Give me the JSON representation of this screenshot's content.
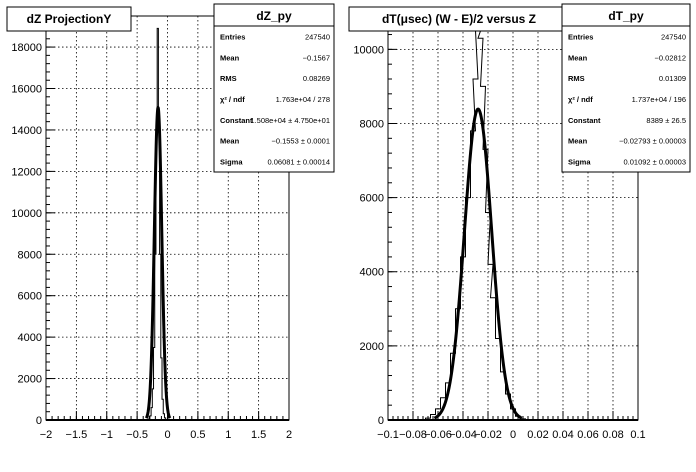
{
  "chart_data": [
    {
      "type": "histogram",
      "title": "dZ ProjectionY",
      "xlim": [
        -2,
        2
      ],
      "ylim": [
        0,
        19500
      ],
      "x_ticks": [
        -2,
        -1.5,
        -1,
        -0.5,
        0,
        0.5,
        1,
        1.5,
        2
      ],
      "x_tick_labels": [
        "−2",
        "−1.5",
        "−1",
        "−0.5",
        "0",
        "0.5",
        "1",
        "1.5",
        "2"
      ],
      "y_ticks": [
        0,
        2000,
        4000,
        6000,
        8000,
        10000,
        12000,
        14000,
        16000,
        18000
      ],
      "y_tick_labels": [
        "0",
        "2000",
        "4000",
        "6000",
        "8000",
        "10000",
        "12000",
        "14000",
        "16000",
        "18000"
      ],
      "grid": true,
      "histogram": {
        "x": [
          -0.3,
          -0.28,
          -0.26,
          -0.24,
          -0.22,
          -0.2,
          -0.18,
          -0.16,
          -0.14,
          -0.12,
          -0.1,
          -0.08,
          -0.06,
          -0.04,
          -0.02
        ],
        "y": [
          50,
          200,
          600,
          1500,
          3500,
          8000,
          14000,
          18900,
          14000,
          8000,
          3000,
          1000,
          300,
          100,
          20
        ]
      },
      "fit": {
        "constant": 15080,
        "mean": -0.1553,
        "sigma": 0.06081
      },
      "stats": {
        "name": "dZ_py",
        "rows": [
          {
            "label": "Entries",
            "value": "247540"
          },
          {
            "label": "Mean",
            "value": "−0.1567"
          },
          {
            "label": "RMS",
            "value": "0.08269"
          },
          {
            "label": "χ² / ndf",
            "value": "1.763e+04 / 278"
          },
          {
            "label": "Constant",
            "value": "1.508e+04 ± 4.750e+01"
          },
          {
            "label": "Mean",
            "value": "−0.1553 ± 0.0001"
          },
          {
            "label": "Sigma",
            "value": "0.06081 ± 0.00014"
          }
        ]
      }
    },
    {
      "type": "histogram",
      "title": "dT(μsec) (W - E)/2 versus Z",
      "xlim": [
        -0.1,
        0.1
      ],
      "ylim": [
        0,
        10900
      ],
      "x_ticks": [
        -0.1,
        -0.08,
        -0.06,
        -0.04,
        -0.02,
        0,
        0.02,
        0.04,
        0.06,
        0.08,
        0.1
      ],
      "x_tick_labels": [
        "−0.1",
        "−0.08",
        "−0.06",
        "−0.04",
        "−0.02",
        "0",
        "0.02",
        "0.04",
        "0.06",
        "0.08",
        "0.1"
      ],
      "y_ticks": [
        0,
        2000,
        4000,
        6000,
        8000,
        10000
      ],
      "y_tick_labels": [
        "0",
        "2000",
        "4000",
        "6000",
        "8000",
        "10000"
      ],
      "grid": true,
      "histogram": {
        "x": [
          -0.068,
          -0.064,
          -0.06,
          -0.056,
          -0.052,
          -0.048,
          -0.044,
          -0.04,
          -0.036,
          -0.032,
          -0.03,
          -0.028,
          -0.026,
          -0.024,
          -0.022,
          -0.02,
          -0.018,
          -0.016,
          -0.012,
          -0.008,
          -0.004,
          0.0,
          0.004,
          0.008
        ],
        "y": [
          50,
          150,
          300,
          600,
          1000,
          1800,
          3000,
          4400,
          6000,
          7800,
          9200,
          10500,
          10300,
          9000,
          7300,
          5600,
          4200,
          3300,
          2200,
          1300,
          700,
          300,
          100,
          30
        ]
      },
      "fit": {
        "constant": 8389,
        "mean": -0.02793,
        "sigma": 0.01092
      },
      "stats": {
        "name": "dT_py",
        "rows": [
          {
            "label": "Entries",
            "value": "247540"
          },
          {
            "label": "Mean",
            "value": "−0.02812"
          },
          {
            "label": "RMS",
            "value": "0.01309"
          },
          {
            "label": "χ² / ndf",
            "value": "1.737e+04 / 196"
          },
          {
            "label": "Constant",
            "value": "8389 ± 26.5"
          },
          {
            "label": "Mean",
            "value": "−0.02793 ± 0.00003"
          },
          {
            "label": "Sigma",
            "value": "0.01092 ± 0.00003"
          }
        ]
      }
    }
  ]
}
